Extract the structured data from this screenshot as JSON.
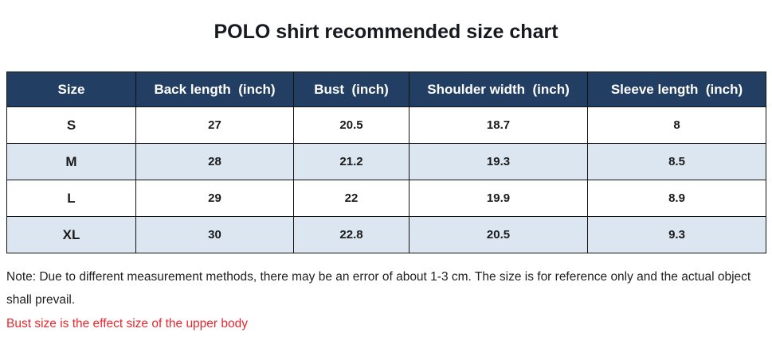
{
  "page": {
    "title": "POLO shirt recommended size chart"
  },
  "chart_data": {
    "type": "table",
    "title": "POLO shirt recommended size chart",
    "columns": [
      "Size",
      "Back length  (inch)",
      "Bust  (inch)",
      "Shoulder width  (inch)",
      "Sleeve length  (inch)"
    ],
    "rows": [
      [
        "S",
        "27",
        "20.5",
        "18.7",
        "8"
      ],
      [
        "M",
        "28",
        "21.2",
        "19.3",
        "8.5"
      ],
      [
        "L",
        "29",
        "22",
        "19.9",
        "8.9"
      ],
      [
        "XL",
        "30",
        "22.8",
        "20.5",
        "9.3"
      ]
    ],
    "layout_hints": {
      "striped_rows": [
        "M",
        "XL"
      ],
      "header_style": "dark navy with white bold text",
      "grid": true
    }
  },
  "notes": {
    "disclaimer": "Note: Due to different measurement methods, there may be an error of about 1-3 cm. The size is for reference only and the actual object shall prevail.",
    "bust_note": "Bust size is the effect size of the upper body"
  },
  "colors": {
    "header_bg": "#223E62",
    "header_text": "#FFFFFF",
    "stripe_bg": "#DCE6F1",
    "border": "#121212",
    "note_red": "#E8262D"
  }
}
